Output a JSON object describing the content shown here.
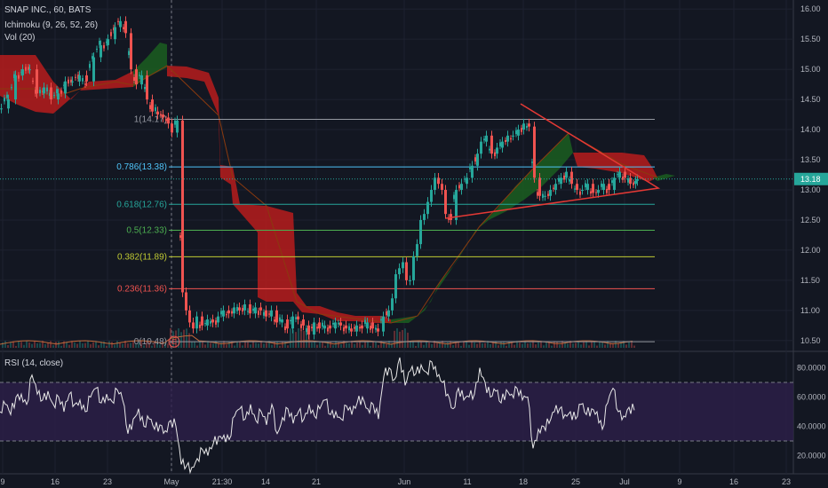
{
  "colors": {
    "bg": "#131722",
    "grid": "#1e2230",
    "axis": "#b2b5be",
    "up": "#26a69a",
    "down": "#ef5350",
    "cloud_red": "#b71c1c",
    "cloud_green": "#1b5e20",
    "kijun": "#8b3a0f",
    "rsi_band": "#2d1f4a",
    "rsi_line": "#e8e8e8",
    "trend": "#e53935",
    "price_label_bg": "#26a69a"
  },
  "main_legend": {
    "symbol": "SNAP INC., 60, BATS",
    "indicator1": "Ichimoku (9, 26, 52, 26)",
    "indicator2": "Vol (20)"
  },
  "rsi_legend": {
    "title": "RSI (14, close)"
  },
  "price_axis": {
    "ticks": [
      "16.00",
      "15.50",
      "15.00",
      "14.50",
      "14.00",
      "13.50",
      "13.00",
      "12.50",
      "12.00",
      "11.50",
      "11.00",
      "10.50"
    ],
    "current": "13.18"
  },
  "rsi_axis": {
    "ticks": [
      "80.0000",
      "60.0000",
      "40.0000",
      "20.0000"
    ]
  },
  "time_axis": {
    "labels": [
      "9",
      "16",
      "23",
      "May",
      "21:30",
      "14",
      "21",
      "Jun",
      "11",
      "18",
      "25",
      "Jul",
      "9",
      "16",
      "23"
    ]
  },
  "fib_levels": [
    {
      "label": "1(14.17)",
      "value": 14.17,
      "color": "#9598a1"
    },
    {
      "label": "0.786(13.38)",
      "value": 13.38,
      "color": "#4fc3f7"
    },
    {
      "label": "0.618(12.76)",
      "value": 12.76,
      "color": "#26a69a"
    },
    {
      "label": "0.5(12.33)",
      "value": 12.33,
      "color": "#4caf50"
    },
    {
      "label": "0.382(11.89)",
      "value": 11.89,
      "color": "#c0ca33"
    },
    {
      "label": "0.236(11.36)",
      "value": 11.36,
      "color": "#ef5350"
    },
    {
      "label": "0(10.48)",
      "value": 10.48,
      "color": "#9598a1"
    }
  ],
  "dividend_marker": "E",
  "chart_data": [
    {
      "type": "candlestick",
      "title": "SNAP INC., 60, BATS",
      "indicators": [
        "Ichimoku (9, 26, 52, 26)",
        "Vol (20)"
      ],
      "ylim": [
        10.35,
        16.15
      ],
      "x_ticks": [
        "9",
        "16",
        "23",
        "May",
        "21:30",
        "14",
        "21",
        "Jun",
        "11",
        "18",
        "25",
        "Jul",
        "9",
        "16",
        "23"
      ],
      "close_series_approx": [
        [
          0,
          14.35
        ],
        [
          8,
          14.5
        ],
        [
          16,
          14.9
        ],
        [
          24,
          15.0
        ],
        [
          32,
          15.0
        ],
        [
          40,
          14.6
        ],
        [
          48,
          14.7
        ],
        [
          56,
          14.5
        ],
        [
          64,
          14.6
        ],
        [
          72,
          14.8
        ],
        [
          80,
          14.8
        ],
        [
          88,
          14.9
        ],
        [
          96,
          14.8
        ],
        [
          104,
          15.2
        ],
        [
          112,
          15.4
        ],
        [
          120,
          15.5
        ],
        [
          128,
          15.7
        ],
        [
          134,
          15.8
        ],
        [
          140,
          15.6
        ],
        [
          146,
          15.0
        ],
        [
          152,
          14.75
        ],
        [
          158,
          14.9
        ],
        [
          164,
          14.5
        ],
        [
          170,
          14.3
        ],
        [
          176,
          14.25
        ],
        [
          182,
          14.2
        ],
        [
          188,
          14.1
        ],
        [
          192,
          13.95
        ],
        [
          198,
          14.15
        ],
        [
          204,
          11.3
        ],
        [
          208,
          11.0
        ],
        [
          212,
          10.8
        ],
        [
          216,
          10.7
        ],
        [
          220,
          10.9
        ],
        [
          226,
          10.75
        ],
        [
          232,
          10.85
        ],
        [
          238,
          10.8
        ],
        [
          244,
          10.9
        ],
        [
          250,
          11.0
        ],
        [
          256,
          10.95
        ],
        [
          262,
          11.05
        ],
        [
          268,
          11.0
        ],
        [
          274,
          11.1
        ],
        [
          280,
          10.95
        ],
        [
          286,
          11.05
        ],
        [
          292,
          11.0
        ],
        [
          298,
          10.9
        ],
        [
          304,
          11.0
        ],
        [
          310,
          10.8
        ],
        [
          316,
          10.85
        ],
        [
          322,
          10.7
        ],
        [
          328,
          10.9
        ],
        [
          334,
          10.85
        ],
        [
          340,
          10.75
        ],
        [
          346,
          10.6
        ],
        [
          352,
          10.8
        ],
        [
          358,
          10.7
        ],
        [
          364,
          10.75
        ],
        [
          370,
          10.7
        ],
        [
          376,
          10.8
        ],
        [
          382,
          10.75
        ],
        [
          388,
          10.7
        ],
        [
          394,
          10.65
        ],
        [
          400,
          10.75
        ],
        [
          406,
          10.7
        ],
        [
          412,
          10.8
        ],
        [
          418,
          10.7
        ],
        [
          424,
          10.65
        ],
        [
          430,
          10.9
        ],
        [
          436,
          11.0
        ],
        [
          440,
          11.2
        ],
        [
          444,
          11.6
        ],
        [
          448,
          11.7
        ],
        [
          452,
          11.8
        ],
        [
          456,
          11.5
        ],
        [
          460,
          11.5
        ],
        [
          464,
          11.9
        ],
        [
          468,
          12.1
        ],
        [
          472,
          12.5
        ],
        [
          476,
          12.6
        ],
        [
          480,
          12.8
        ],
        [
          484,
          13.0
        ],
        [
          488,
          13.2
        ],
        [
          492,
          13.1
        ],
        [
          496,
          13.0
        ],
        [
          500,
          12.6
        ],
        [
          506,
          12.5
        ],
        [
          512,
          13.0
        ],
        [
          518,
          13.1
        ],
        [
          524,
          13.2
        ],
        [
          530,
          13.4
        ],
        [
          536,
          13.6
        ],
        [
          540,
          13.8
        ],
        [
          546,
          13.9
        ],
        [
          552,
          13.6
        ],
        [
          558,
          13.7
        ],
        [
          564,
          13.8
        ],
        [
          570,
          13.9
        ],
        [
          576,
          13.9
        ],
        [
          582,
          14.0
        ],
        [
          588,
          14.1
        ],
        [
          594,
          14.05
        ],
        [
          600,
          13.2
        ],
        [
          606,
          12.9
        ],
        [
          612,
          12.9
        ],
        [
          618,
          13.0
        ],
        [
          624,
          13.1
        ],
        [
          630,
          13.2
        ],
        [
          636,
          13.3
        ],
        [
          642,
          13.1
        ],
        [
          648,
          13.0
        ],
        [
          654,
          13.0
        ],
        [
          660,
          13.1
        ],
        [
          666,
          12.95
        ],
        [
          672,
          13.0
        ],
        [
          678,
          13.1
        ],
        [
          684,
          13.0
        ],
        [
          690,
          13.2
        ],
        [
          696,
          13.3
        ],
        [
          702,
          13.2
        ],
        [
          708,
          13.1
        ],
        [
          714,
          13.15
        ],
        [
          716,
          13.18
        ]
      ],
      "current_price": 13.18
    },
    {
      "type": "line",
      "title": "RSI (14, close)",
      "ylim": [
        10,
        90
      ],
      "bands": [
        30,
        70
      ],
      "series": [
        {
          "values_approx": [
            [
              0,
              50
            ],
            [
              6,
              55
            ],
            [
              12,
              48
            ],
            [
              18,
              60
            ],
            [
              24,
              62
            ],
            [
              30,
              55
            ],
            [
              36,
              75
            ],
            [
              42,
              62
            ],
            [
              48,
              58
            ],
            [
              54,
              64
            ],
            [
              60,
              55
            ],
            [
              66,
              60
            ],
            [
              72,
              50
            ],
            [
              78,
              62
            ],
            [
              84,
              55
            ],
            [
              90,
              58
            ],
            [
              96,
              50
            ],
            [
              102,
              60
            ],
            [
              108,
              66
            ],
            [
              114,
              56
            ],
            [
              120,
              62
            ],
            [
              126,
              57
            ],
            [
              132,
              65
            ],
            [
              138,
              58
            ],
            [
              144,
              35
            ],
            [
              150,
              45
            ],
            [
              156,
              52
            ],
            [
              162,
              40
            ],
            [
              168,
              45
            ],
            [
              174,
              38
            ],
            [
              180,
              41
            ],
            [
              186,
              37
            ],
            [
              192,
              44
            ],
            [
              198,
              40
            ],
            [
              204,
              14
            ],
            [
              210,
              13
            ],
            [
              216,
              12
            ],
            [
              222,
              18
            ],
            [
              228,
              24
            ],
            [
              234,
              20
            ],
            [
              240,
              28
            ],
            [
              246,
              33
            ],
            [
              252,
              34
            ],
            [
              258,
              31
            ],
            [
              264,
              47
            ],
            [
              270,
              52
            ],
            [
              276,
              45
            ],
            [
              282,
              55
            ],
            [
              288,
              44
            ],
            [
              294,
              50
            ],
            [
              300,
              41
            ],
            [
              306,
              55
            ],
            [
              312,
              35
            ],
            [
              318,
              46
            ],
            [
              324,
              52
            ],
            [
              330,
              42
            ],
            [
              336,
              50
            ],
            [
              342,
              45
            ],
            [
              348,
              55
            ],
            [
              354,
              47
            ],
            [
              360,
              52
            ],
            [
              366,
              58
            ],
            [
              372,
              48
            ],
            [
              378,
              50
            ],
            [
              384,
              45
            ],
            [
              390,
              54
            ],
            [
              396,
              48
            ],
            [
              402,
              56
            ],
            [
              408,
              60
            ],
            [
              414,
              52
            ],
            [
              420,
              55
            ],
            [
              426,
              45
            ],
            [
              432,
              74
            ],
            [
              438,
              80
            ],
            [
              444,
              72
            ],
            [
              450,
              87
            ],
            [
              456,
              68
            ],
            [
              462,
              78
            ],
            [
              468,
              76
            ],
            [
              474,
              82
            ],
            [
              480,
              77
            ],
            [
              486,
              84
            ],
            [
              492,
              74
            ],
            [
              498,
              70
            ],
            [
              504,
              62
            ],
            [
              510,
              52
            ],
            [
              516,
              66
            ],
            [
              522,
              58
            ],
            [
              528,
              60
            ],
            [
              534,
              62
            ],
            [
              540,
              80
            ],
            [
              546,
              70
            ],
            [
              552,
              60
            ],
            [
              558,
              64
            ],
            [
              564,
              56
            ],
            [
              570,
              65
            ],
            [
              576,
              62
            ],
            [
              582,
              66
            ],
            [
              588,
              58
            ],
            [
              594,
              60
            ],
            [
              600,
              25
            ],
            [
              606,
              38
            ],
            [
              612,
              40
            ],
            [
              618,
              42
            ],
            [
              624,
              50
            ],
            [
              630,
              52
            ],
            [
              636,
              48
            ],
            [
              642,
              50
            ],
            [
              648,
              45
            ],
            [
              654,
              55
            ],
            [
              660,
              48
            ],
            [
              666,
              52
            ],
            [
              672,
              50
            ],
            [
              678,
              38
            ],
            [
              684,
              56
            ],
            [
              690,
              66
            ],
            [
              696,
              50
            ],
            [
              702,
              47
            ],
            [
              708,
              53
            ],
            [
              714,
              51
            ]
          ]
        }
      ]
    }
  ]
}
